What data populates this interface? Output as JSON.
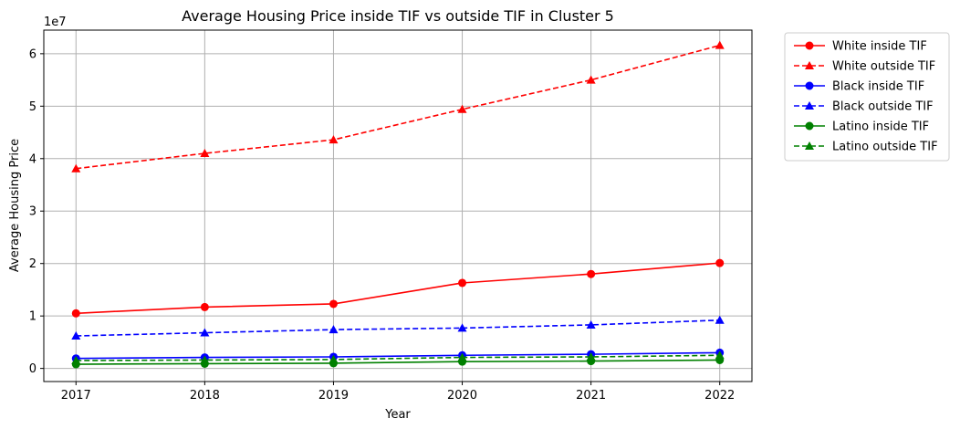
{
  "chart_data": {
    "type": "line",
    "title": "Average Housing Price inside TIF vs outside TIF in Cluster 5",
    "xlabel": "Year",
    "ylabel": "Average Housing Price",
    "y_offset_label": "1e7",
    "x": [
      2017,
      2018,
      2019,
      2020,
      2021,
      2022
    ],
    "x_tick_labels": [
      "2017",
      "2018",
      "2019",
      "2020",
      "2021",
      "2022"
    ],
    "y_ticks": [
      0,
      1,
      2,
      3,
      4,
      5,
      6
    ],
    "y_tick_labels": [
      "0",
      "1",
      "2",
      "3",
      "4",
      "5",
      "6"
    ],
    "xlim": [
      2016.75,
      2022.25
    ],
    "ylim": [
      -0.25,
      6.45
    ],
    "grid": true,
    "legend_position": "outside-upper-right",
    "series": [
      {
        "name": "White inside TIF",
        "color": "#ff0000",
        "dash": "solid",
        "marker": "circle",
        "values": [
          1.05,
          1.17,
          1.23,
          1.63,
          1.8,
          2.01
        ]
      },
      {
        "name": "White outside TIF",
        "color": "#ff0000",
        "dash": "dashed",
        "marker": "triangle",
        "values": [
          3.81,
          4.1,
          4.36,
          4.94,
          5.5,
          6.16
        ]
      },
      {
        "name": "Black inside TIF",
        "color": "#0000ff",
        "dash": "solid",
        "marker": "circle",
        "values": [
          0.19,
          0.21,
          0.22,
          0.25,
          0.27,
          0.3
        ]
      },
      {
        "name": "Black outside TIF",
        "color": "#0000ff",
        "dash": "dashed",
        "marker": "triangle",
        "values": [
          0.62,
          0.68,
          0.74,
          0.77,
          0.83,
          0.92
        ]
      },
      {
        "name": "Latino inside TIF",
        "color": "#008000",
        "dash": "solid",
        "marker": "circle",
        "values": [
          0.08,
          0.09,
          0.1,
          0.13,
          0.14,
          0.16
        ]
      },
      {
        "name": "Latino outside TIF",
        "color": "#008000",
        "dash": "dashed",
        "marker": "triangle",
        "values": [
          0.15,
          0.16,
          0.17,
          0.21,
          0.22,
          0.25
        ]
      }
    ]
  }
}
